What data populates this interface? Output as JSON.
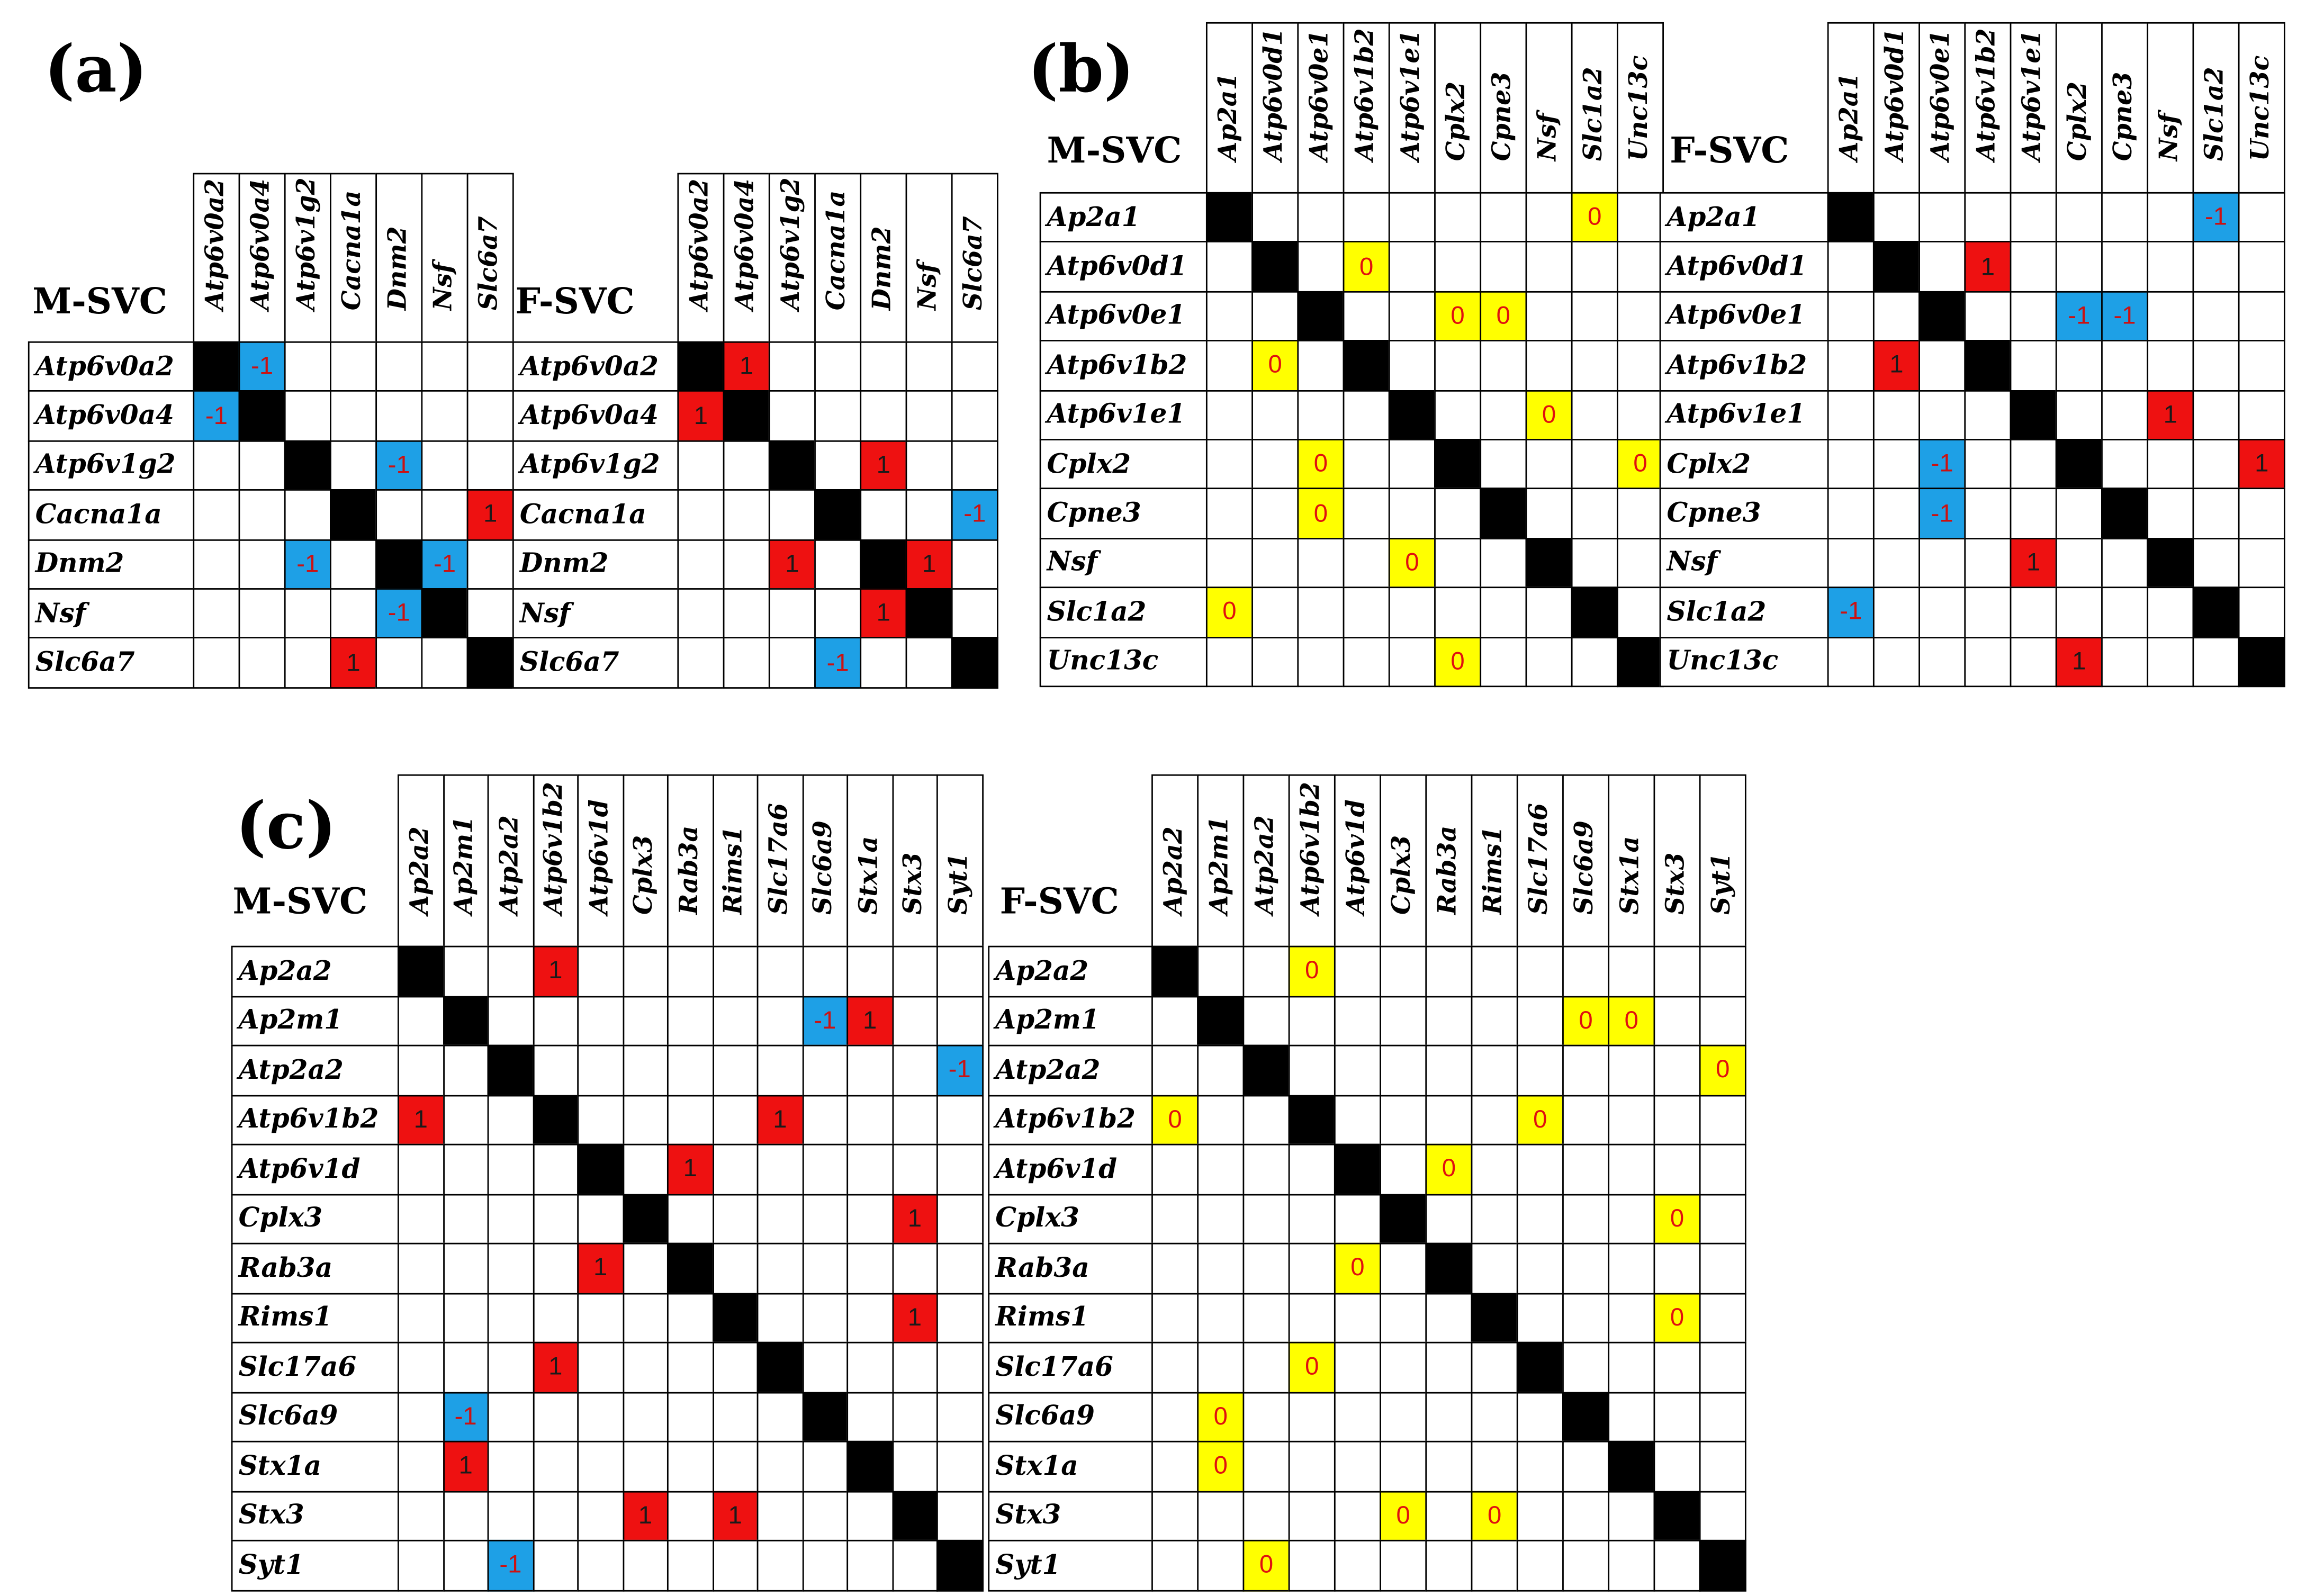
{
  "panels": [
    {
      "label": "(a)",
      "genes": [
        "Atp6v0a2",
        "Atp6v0a4",
        "Atp6v1g2",
        "Cacna1a",
        "Dnm2",
        "Nsf",
        "Slc6a7"
      ],
      "matrices": [
        {
          "title": "M-SVC",
          "values": [
            [
              null,
              -1,
              null,
              null,
              null,
              null,
              null
            ],
            [
              -1,
              null,
              null,
              null,
              null,
              null,
              null
            ],
            [
              null,
              null,
              null,
              null,
              -1,
              null,
              null
            ],
            [
              null,
              null,
              null,
              null,
              null,
              null,
              1
            ],
            [
              null,
              null,
              -1,
              null,
              null,
              -1,
              null
            ],
            [
              null,
              null,
              null,
              null,
              -1,
              null,
              null
            ],
            [
              null,
              null,
              null,
              1,
              null,
              null,
              null
            ]
          ]
        },
        {
          "title": "F-SVC",
          "values": [
            [
              null,
              1,
              null,
              null,
              null,
              null,
              null
            ],
            [
              1,
              null,
              null,
              null,
              null,
              null,
              null
            ],
            [
              null,
              null,
              null,
              null,
              1,
              null,
              null
            ],
            [
              null,
              null,
              null,
              null,
              null,
              null,
              -1
            ],
            [
              null,
              null,
              1,
              null,
              null,
              1,
              null
            ],
            [
              null,
              null,
              null,
              null,
              1,
              null,
              null
            ],
            [
              null,
              null,
              null,
              -1,
              null,
              null,
              null
            ]
          ]
        }
      ]
    },
    {
      "label": "(b)",
      "genes": [
        "Ap2a1",
        "Atp6v0d1",
        "Atp6v0e1",
        "Atp6v1b2",
        "Atp6v1e1",
        "Cplx2",
        "Cpne3",
        "Nsf",
        "Slc1a2",
        "Unc13c"
      ],
      "matrices": [
        {
          "title": "M-SVC",
          "values": [
            [
              null,
              null,
              null,
              null,
              null,
              null,
              null,
              null,
              0,
              null
            ],
            [
              null,
              null,
              null,
              0,
              null,
              null,
              null,
              null,
              null,
              null
            ],
            [
              null,
              null,
              null,
              null,
              null,
              0,
              0,
              null,
              null,
              null
            ],
            [
              null,
              0,
              null,
              null,
              null,
              null,
              null,
              null,
              null,
              null
            ],
            [
              null,
              null,
              null,
              null,
              null,
              null,
              null,
              0,
              null,
              null
            ],
            [
              null,
              null,
              0,
              null,
              null,
              null,
              null,
              null,
              null,
              0
            ],
            [
              null,
              null,
              0,
              null,
              null,
              null,
              null,
              null,
              null,
              null
            ],
            [
              null,
              null,
              null,
              null,
              0,
              null,
              null,
              null,
              null,
              null
            ],
            [
              0,
              null,
              null,
              null,
              null,
              null,
              null,
              null,
              null,
              null
            ],
            [
              null,
              null,
              null,
              null,
              null,
              0,
              null,
              null,
              null,
              null
            ]
          ]
        },
        {
          "title": "F-SVC",
          "values": [
            [
              null,
              null,
              null,
              null,
              null,
              null,
              null,
              null,
              -1,
              null
            ],
            [
              null,
              null,
              null,
              1,
              null,
              null,
              null,
              null,
              null,
              null
            ],
            [
              null,
              null,
              null,
              null,
              null,
              -1,
              -1,
              null,
              null,
              null
            ],
            [
              null,
              1,
              null,
              null,
              null,
              null,
              null,
              null,
              null,
              null
            ],
            [
              null,
              null,
              null,
              null,
              null,
              null,
              null,
              1,
              null,
              null
            ],
            [
              null,
              null,
              -1,
              null,
              null,
              null,
              null,
              null,
              null,
              1
            ],
            [
              null,
              null,
              -1,
              null,
              null,
              null,
              null,
              null,
              null,
              null
            ],
            [
              null,
              null,
              null,
              null,
              1,
              null,
              null,
              null,
              null,
              null
            ],
            [
              -1,
              null,
              null,
              null,
              null,
              null,
              null,
              null,
              null,
              null
            ],
            [
              null,
              null,
              null,
              null,
              null,
              1,
              null,
              null,
              null,
              null
            ]
          ]
        }
      ]
    },
    {
      "label": "(c)",
      "genes": [
        "Ap2a2",
        "Ap2m1",
        "Atp2a2",
        "Atp6v1b2",
        "Atp6v1d",
        "Cplx3",
        "Rab3a",
        "Rims1",
        "Slc17a6",
        "Slc6a9",
        "Stx1a",
        "Stx3",
        "Syt1"
      ],
      "matrices": [
        {
          "title": "M-SVC",
          "values": [
            [
              null,
              null,
              null,
              1,
              null,
              null,
              null,
              null,
              null,
              null,
              null,
              null,
              null
            ],
            [
              null,
              null,
              null,
              null,
              null,
              null,
              null,
              null,
              null,
              -1,
              1,
              null,
              null
            ],
            [
              null,
              null,
              null,
              null,
              null,
              null,
              null,
              null,
              null,
              null,
              null,
              null,
              -1
            ],
            [
              1,
              null,
              null,
              null,
              null,
              null,
              null,
              null,
              1,
              null,
              null,
              null,
              null
            ],
            [
              null,
              null,
              null,
              null,
              null,
              null,
              1,
              null,
              null,
              null,
              null,
              null,
              null
            ],
            [
              null,
              null,
              null,
              null,
              null,
              null,
              null,
              null,
              null,
              null,
              null,
              1,
              null
            ],
            [
              null,
              null,
              null,
              null,
              1,
              null,
              null,
              null,
              null,
              null,
              null,
              null,
              null
            ],
            [
              null,
              null,
              null,
              null,
              null,
              null,
              null,
              null,
              null,
              null,
              null,
              1,
              null
            ],
            [
              null,
              null,
              null,
              1,
              null,
              null,
              null,
              null,
              null,
              null,
              null,
              null,
              null
            ],
            [
              null,
              -1,
              null,
              null,
              null,
              null,
              null,
              null,
              null,
              null,
              null,
              null,
              null
            ],
            [
              null,
              1,
              null,
              null,
              null,
              null,
              null,
              null,
              null,
              null,
              null,
              null,
              null
            ],
            [
              null,
              null,
              null,
              null,
              null,
              1,
              null,
              1,
              null,
              null,
              null,
              null,
              null
            ],
            [
              null,
              null,
              -1,
              null,
              null,
              null,
              null,
              null,
              null,
              null,
              null,
              null,
              null
            ]
          ]
        },
        {
          "title": "F-SVC",
          "values": [
            [
              null,
              null,
              null,
              0,
              null,
              null,
              null,
              null,
              null,
              null,
              null,
              null,
              null
            ],
            [
              null,
              null,
              null,
              null,
              null,
              null,
              null,
              null,
              null,
              0,
              0,
              null,
              null
            ],
            [
              null,
              null,
              null,
              null,
              null,
              null,
              null,
              null,
              null,
              null,
              null,
              null,
              0
            ],
            [
              0,
              null,
              null,
              null,
              null,
              null,
              null,
              null,
              0,
              null,
              null,
              null,
              null
            ],
            [
              null,
              null,
              null,
              null,
              null,
              null,
              0,
              null,
              null,
              null,
              null,
              null,
              null
            ],
            [
              null,
              null,
              null,
              null,
              null,
              null,
              null,
              null,
              null,
              null,
              null,
              0,
              null
            ],
            [
              null,
              null,
              null,
              null,
              0,
              null,
              null,
              null,
              null,
              null,
              null,
              null,
              null
            ],
            [
              null,
              null,
              null,
              null,
              null,
              null,
              null,
              null,
              null,
              null,
              null,
              0,
              null
            ],
            [
              null,
              null,
              null,
              0,
              null,
              null,
              null,
              null,
              null,
              null,
              null,
              null,
              null
            ],
            [
              null,
              0,
              null,
              null,
              null,
              null,
              null,
              null,
              null,
              null,
              null,
              null,
              null
            ],
            [
              null,
              0,
              null,
              null,
              null,
              null,
              null,
              null,
              null,
              null,
              null,
              null,
              null
            ],
            [
              null,
              null,
              null,
              null,
              null,
              0,
              null,
              0,
              null,
              null,
              null,
              null,
              null
            ],
            [
              null,
              null,
              0,
              null,
              null,
              null,
              null,
              null,
              null,
              null,
              null,
              null,
              null
            ]
          ]
        }
      ]
    }
  ]
}
